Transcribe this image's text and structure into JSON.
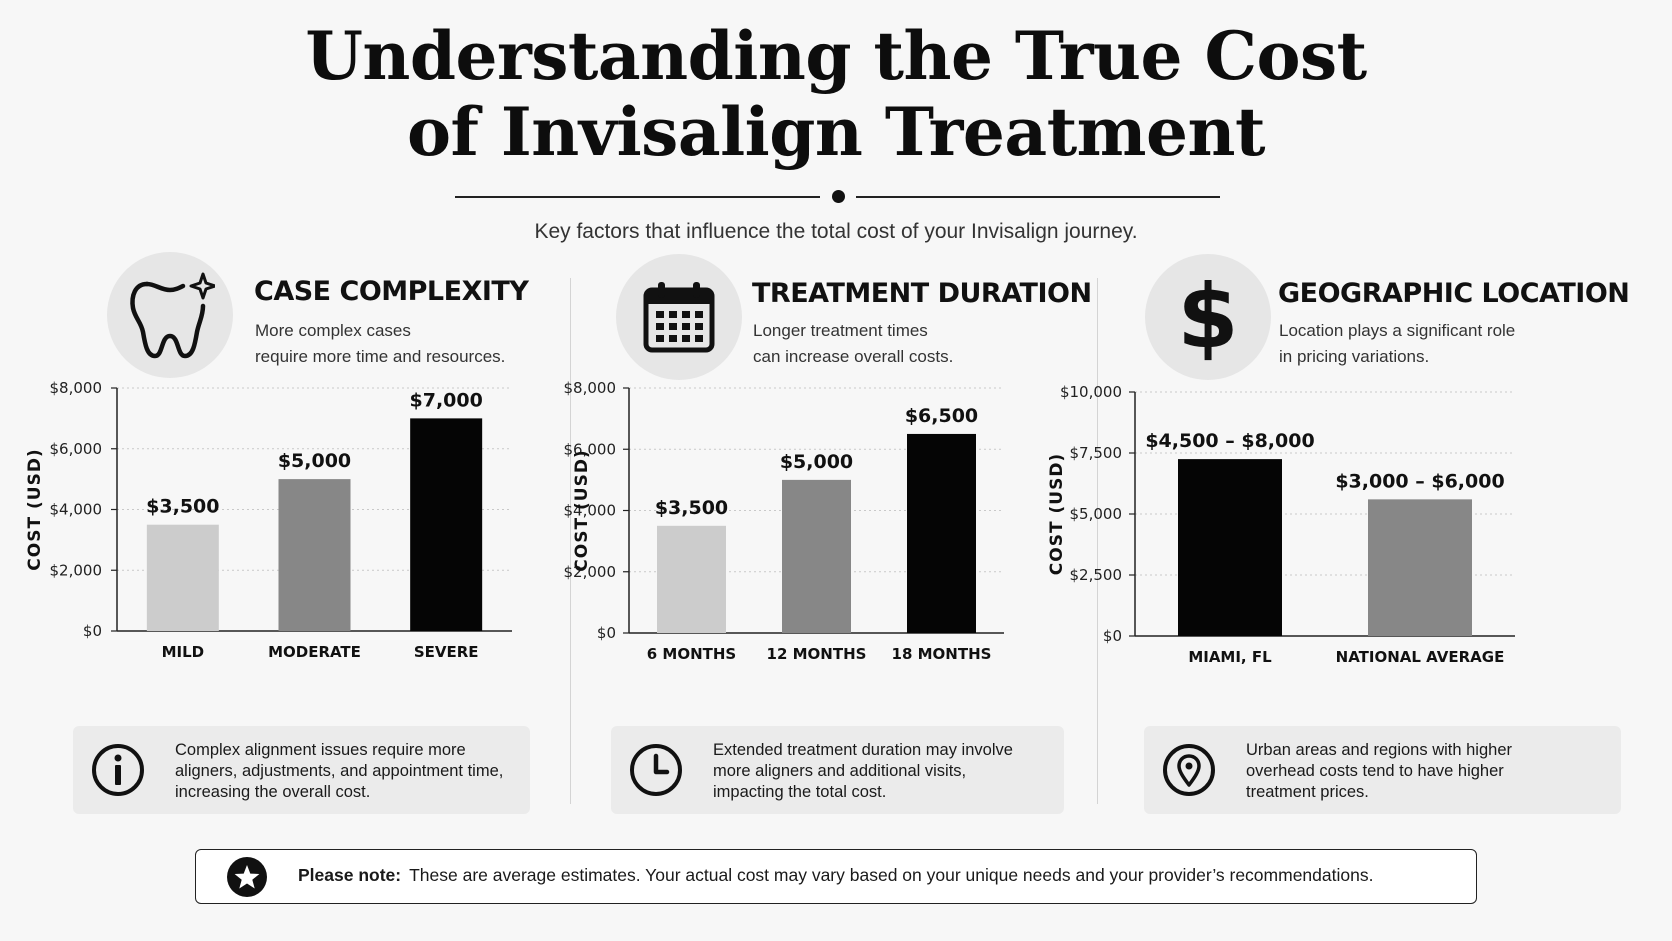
{
  "header": {
    "title_line1": "Understanding the True Cost",
    "title_line2": "of Invisalign Treatment",
    "subtitle": "Key factors that influence the total cost of your Invisalign journey."
  },
  "panels": [
    {
      "icon": "tooth-sparkle-icon",
      "heading": "CASE COMPLEXITY",
      "desc_line1": "More complex cases",
      "desc_line2": "require more time and resources.",
      "info_icon": "info-icon",
      "info_line1": "Complex alignment issues require more",
      "info_line2": "aligners, adjustments, and appointment time,",
      "info_line3": "increasing the overall cost."
    },
    {
      "icon": "calendar-icon",
      "heading": "TREATMENT DURATION",
      "desc_line1": "Longer treatment times",
      "desc_line2": "can increase overall costs.",
      "info_icon": "clock-icon",
      "info_line1": "Extended treatment duration may involve",
      "info_line2": "more aligners and additional visits,",
      "info_line3": "impacting the total cost."
    },
    {
      "icon": "dollar-icon",
      "heading": "GEOGRAPHIC LOCATION",
      "desc_line1": "Location plays a significant role",
      "desc_line2": "in pricing variations.",
      "info_icon": "location-pin-icon",
      "info_line1": "Urban areas and regions with higher",
      "info_line2": "overhead costs tend to have higher",
      "info_line3": "treatment prices."
    }
  ],
  "chart_data": [
    {
      "type": "bar",
      "categories": [
        "MILD",
        "MODERATE",
        "SEVERE"
      ],
      "values": [
        3500,
        5000,
        7000
      ],
      "value_labels": [
        "$3,500",
        "$5,000",
        "$7,000"
      ],
      "bar_colors": [
        "#cccccc",
        "#878787",
        "#050505"
      ],
      "ylabel": "COST (USD)",
      "ylim": [
        0,
        8000
      ],
      "yticks": [
        0,
        2000,
        4000,
        6000,
        8000
      ],
      "ytick_labels": [
        "$0",
        "$2,000",
        "$4,000",
        "$6,000",
        "$8,000"
      ],
      "grid": true
    },
    {
      "type": "bar",
      "categories": [
        "6 MONTHS",
        "12 MONTHS",
        "18 MONTHS"
      ],
      "values": [
        3500,
        5000,
        6500
      ],
      "value_labels": [
        "$3,500",
        "$5,000",
        "$6,500"
      ],
      "bar_colors": [
        "#cccccc",
        "#878787",
        "#050505"
      ],
      "ylabel": "COST (USD)",
      "ylim": [
        0,
        8000
      ],
      "yticks": [
        0,
        2000,
        4000,
        6000,
        8000
      ],
      "ytick_labels": [
        "$0",
        "$2,000",
        "$4,000",
        "$6,000",
        "$8,000"
      ],
      "grid": true
    },
    {
      "type": "bar",
      "categories": [
        "MIAMI, FL",
        "NATIONAL AVERAGE"
      ],
      "values": [
        7250,
        5600
      ],
      "value_labels": [
        "$4,500 – $8,000",
        "$3,000 – $6,000"
      ],
      "bar_colors": [
        "#050505",
        "#878787"
      ],
      "ylabel": "COST (USD)",
      "ylim": [
        0,
        10000
      ],
      "yticks": [
        0,
        2500,
        5000,
        7500,
        10000
      ],
      "ytick_labels": [
        "$0",
        "$2,500",
        "$5,000",
        "$7,500",
        "$10,000"
      ],
      "grid": true
    }
  ],
  "footer": {
    "icon": "star-icon",
    "note_label": "Please note:",
    "note_text": "These are average estimates.  Your actual cost may vary based on your unique needs and your provider’s recommendations."
  }
}
